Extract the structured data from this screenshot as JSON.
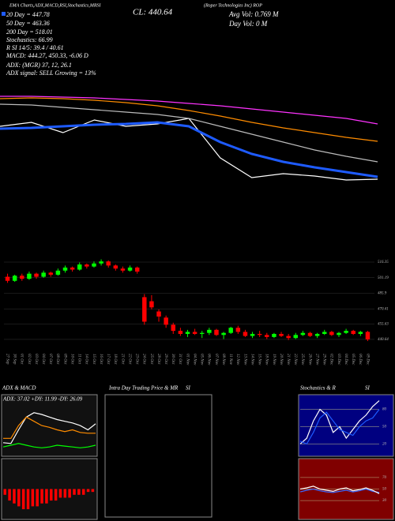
{
  "info": [
    "EMA Charts,ADX,MACD,RSI,Stochastics,MRSI",
    "CL: 440.64",
    "(Roper Technologies Inc) ROP",
    "Avg Vol: 0.769 M",
    "Day Vol: 0 M",
    "20 Day = 447.78",
    "50 Day = 463.36",
    "200 Day = 518.01",
    "Stochastics: 66.99",
    "R SI 14/5: 39.4 / 40.61",
    "MACD: 444.27, 450.33, -6.06 D",
    "ADX: (MGR) 37, 12, 26.1",
    "ADX signal: SELL Growing = 13%"
  ],
  "chart_data": [
    {
      "type": "line",
      "ylim": [
        415,
        555
      ],
      "series": [
        {
          "color": "#ffffff",
          "values": [
            500,
            505,
            492,
            508,
            500,
            503,
            510,
            460,
            435,
            440,
            437,
            432,
            433
          ]
        },
        {
          "color": "#bbbbbb",
          "values": [
            528,
            527,
            524,
            521,
            518,
            515,
            510,
            500,
            490,
            480,
            470,
            462,
            455
          ]
        },
        {
          "color": "#1e5bff",
          "values": [
            497,
            498,
            500,
            502,
            503,
            505,
            500,
            480,
            465,
            455,
            448,
            442,
            436
          ]
        },
        {
          "color": "#ff8c00",
          "values": [
            535,
            536,
            535,
            533,
            530,
            526,
            520,
            513,
            505,
            498,
            492,
            486,
            481
          ]
        },
        {
          "color": "#ff33ff",
          "values": [
            538,
            538,
            537,
            536,
            534,
            532,
            529,
            526,
            522,
            518,
            514,
            510,
            503
          ]
        }
      ]
    },
    {
      "type": "candlestick",
      "ylim": [
        429,
        529.5
      ],
      "yticks": [
        516.35,
        501.19,
        485.9,
        470.41,
        455.63,
        440.64
      ],
      "up_color": "#00ff00",
      "down_color": "#ff0000",
      "categories": [
        "27 Sep",
        "30 Sep",
        "01 Oct",
        "02 Oct",
        "03 Oct",
        "04 Oct",
        "07 Oct",
        "08 Oct",
        "09 Oct",
        "10 Oct",
        "11 Oct",
        "14 Oct",
        "15 Oct",
        "16 Oct",
        "17 Oct",
        "18 Oct",
        "21 Oct",
        "22 Oct",
        "23 Oct",
        "24 Oct",
        "25 Oct",
        "28 Oct",
        "29 Oct",
        "30 Oct",
        "31 Oct",
        "01 Nov",
        "04 Nov",
        "05 Nov",
        "06 Nov",
        "07 Nov",
        "08 Nov",
        "11 Nov",
        "12 Nov",
        "13 Nov",
        "14 Nov",
        "15 Nov",
        "18 Nov",
        "19 Nov",
        "20 Nov",
        "21 Nov",
        "22 Nov",
        "25 Nov",
        "26 Nov",
        "27 Nov",
        "29 Nov",
        "02 Dec",
        "03 Dec",
        "04 Dec",
        "05 Dec",
        "06 Dec",
        "09 Dec"
      ],
      "open": [
        502,
        498,
        503,
        500,
        505,
        502,
        506,
        504,
        508,
        511,
        509,
        514,
        512,
        515,
        517,
        513,
        510,
        508,
        511,
        482,
        478,
        468,
        462,
        455,
        449,
        446,
        448,
        446,
        447,
        450,
        445,
        447,
        452,
        448,
        444,
        446,
        445,
        443,
        446,
        444,
        442,
        445,
        447,
        444,
        446,
        448,
        445,
        447,
        449,
        446,
        448
      ],
      "high": [
        505,
        504,
        505,
        507,
        506,
        508,
        507,
        510,
        513,
        512,
        516,
        515,
        517,
        519,
        518,
        514,
        512,
        513,
        512,
        485,
        484,
        470,
        464,
        457,
        452,
        450,
        451,
        449,
        452,
        451,
        448,
        453,
        454,
        450,
        448,
        449,
        447,
        447,
        448,
        446,
        447,
        449,
        448,
        447,
        450,
        449,
        448,
        451,
        450,
        449,
        449
      ],
      "low": [
        496,
        497,
        498,
        499,
        500,
        501,
        502,
        503,
        506,
        507,
        508,
        510,
        511,
        513,
        511,
        508,
        506,
        507,
        505,
        455,
        470,
        458,
        452,
        446,
        444,
        443,
        445,
        442,
        445,
        444,
        441,
        446,
        446,
        443,
        442,
        443,
        441,
        442,
        443,
        440,
        441,
        444,
        443,
        442,
        445,
        444,
        443,
        446,
        445,
        444,
        439
      ],
      "close": [
        498,
        503,
        500,
        505,
        502,
        506,
        504,
        508,
        511,
        509,
        514,
        512,
        515,
        517,
        513,
        510,
        508,
        511,
        507,
        458,
        472,
        463,
        455,
        449,
        446,
        448,
        446,
        447,
        450,
        445,
        447,
        452,
        448,
        444,
        446,
        445,
        443,
        446,
        444,
        442,
        445,
        447,
        444,
        446,
        448,
        445,
        447,
        449,
        446,
        448,
        440.64
      ]
    },
    {
      "type": "line",
      "title": "ADX & MACD",
      "subtitle": "ADX: 37.02 +DY: 11.99 -DY: 26.09",
      "ylim": [
        0,
        60
      ],
      "series": [
        {
          "color": "#ffffff",
          "values": [
            15,
            14,
            30,
            45,
            50,
            48,
            45,
            42,
            40,
            38,
            35,
            30,
            37
          ]
        },
        {
          "color": "#ff8c00",
          "values": [
            20,
            20,
            35,
            45,
            40,
            35,
            33,
            30,
            28,
            30,
            27,
            26,
            26
          ]
        },
        {
          "color": "#00ff00",
          "values": [
            10,
            12,
            14,
            12,
            10,
            9,
            10,
            12,
            11,
            10,
            9,
            10,
            12
          ]
        }
      ]
    },
    {
      "type": "bar",
      "ylim": [
        -10,
        10
      ],
      "color": "#ff0000",
      "values": [
        -2,
        -4,
        -5,
        -6,
        -7,
        -7,
        -6,
        -6,
        -5,
        -5,
        -4,
        -4,
        -3,
        -3,
        -3,
        -2,
        -2,
        -2,
        -1,
        -1
      ]
    },
    {
      "type": "line",
      "title": "Intra Day Trading Price & MR",
      "subtitle": "SI",
      "series": []
    },
    {
      "type": "line",
      "title": "Stochastics & R",
      "subtitle": "SI",
      "ylim": [
        0,
        100
      ],
      "yticks": [
        80,
        50,
        20
      ],
      "series": [
        {
          "color": "#ffffff",
          "values": [
            20,
            30,
            60,
            80,
            70,
            40,
            50,
            30,
            45,
            60,
            70,
            85,
            95
          ]
        },
        {
          "color": "#1e5bff",
          "values": [
            25,
            20,
            40,
            65,
            75,
            60,
            45,
            40,
            35,
            50,
            60,
            65,
            80
          ]
        }
      ]
    },
    {
      "type": "line",
      "ylim": [
        0,
        100
      ],
      "yticks": [
        70,
        50,
        30
      ],
      "series": [
        {
          "color": "#3a6bff",
          "values": [
            45,
            48,
            50,
            47,
            45,
            44,
            46,
            48,
            45,
            47,
            50,
            46,
            44
          ]
        },
        {
          "color": "#ffffff",
          "values": [
            50,
            52,
            55,
            50,
            48,
            46,
            50,
            52,
            47,
            49,
            52,
            48,
            42
          ]
        }
      ]
    }
  ]
}
